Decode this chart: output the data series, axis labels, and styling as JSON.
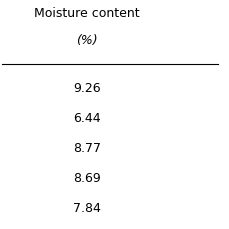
{
  "col_header": "Moisture content",
  "col_subheader": "(%)",
  "values": [
    "9.26",
    "6.44",
    "8.77",
    "8.69",
    "7.84"
  ],
  "background_color": "#ffffff",
  "text_color": "#000000",
  "font_size": 9,
  "header_font_size": 9
}
